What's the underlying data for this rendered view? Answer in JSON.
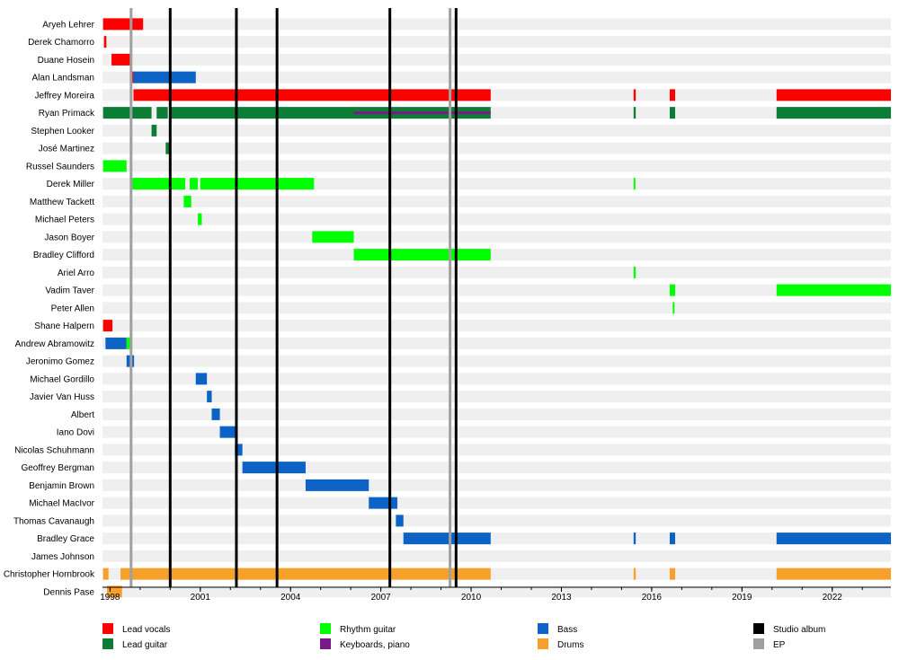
{
  "chart_data": {
    "type": "timeline",
    "x_axis": {
      "min": 1997.75,
      "max": 2023.95,
      "tick_labels": [
        "1998",
        "2001",
        "2004",
        "2007",
        "2010",
        "2013",
        "2016",
        "2019",
        "2022"
      ],
      "tick_values": [
        1998,
        2001,
        2004,
        2007,
        2010,
        2013,
        2016,
        2019,
        2022
      ]
    },
    "colors": {
      "Lead vocals": "#ff0000",
      "Lead guitar": "#0c7d34",
      "Rhythm guitar": "#00ff00",
      "Keyboards, piano": "#7a1a8a",
      "Bass": "#0c62c5",
      "Drums": "#f7a12c",
      "Studio album": "#000000",
      "EP": "#a0a0a0"
    },
    "legend": [
      {
        "label": "Lead vocals",
        "key": "Lead vocals"
      },
      {
        "label": "Lead guitar",
        "key": "Lead guitar"
      },
      {
        "label": "Rhythm guitar",
        "key": "Rhythm guitar"
      },
      {
        "label": "Keyboards, piano",
        "key": "Keyboards, piano"
      },
      {
        "label": "Bass",
        "key": "Bass"
      },
      {
        "label": "Drums",
        "key": "Drums"
      },
      {
        "label": "Studio album",
        "key": "Studio album"
      },
      {
        "label": "EP",
        "key": "EP"
      }
    ],
    "studio_albums": [
      2000.0,
      2002.2,
      2003.55,
      2007.3,
      2009.5
    ],
    "eps": [
      1998.7,
      2009.3
    ],
    "members": [
      {
        "name": "Aryeh Lehrer",
        "spans": [
          {
            "role": "Lead vocals",
            "start": 1997.77,
            "end": 1999.1
          }
        ]
      },
      {
        "name": "Derek Chamorro",
        "spans": [
          {
            "role": "Lead vocals",
            "start": 1997.8,
            "end": 1997.88
          }
        ]
      },
      {
        "name": "Duane Hosein",
        "spans": [
          {
            "role": "Lead vocals",
            "start": 1998.05,
            "end": 1998.7
          }
        ]
      },
      {
        "name": "Alan Landsman",
        "spans": [
          {
            "role": "Lead vocals",
            "start": 1998.7,
            "end": 1998.78
          },
          {
            "role": "Bass",
            "start": 1998.78,
            "end": 2000.85
          }
        ]
      },
      {
        "name": "Jeffrey Moreira",
        "spans": [
          {
            "role": "Lead vocals",
            "start": 1998.78,
            "end": 2010.65
          },
          {
            "role": "Lead vocals",
            "start": 2015.4,
            "end": 2015.47
          },
          {
            "role": "Lead vocals",
            "start": 2016.6,
            "end": 2016.78
          },
          {
            "role": "Lead vocals",
            "start": 2020.15,
            "end": 2023.95
          }
        ]
      },
      {
        "name": "Ryan Primack",
        "spans": [
          {
            "role": "Lead guitar",
            "start": 1997.77,
            "end": 1999.38
          },
          {
            "role": "Lead guitar",
            "start": 1999.55,
            "end": 1999.92
          },
          {
            "role": "Lead guitar",
            "start": 2000.0,
            "end": 2010.65
          },
          {
            "role": "Keyboards, piano",
            "start": 2006.1,
            "end": 2010.65
          },
          {
            "role": "Lead guitar",
            "start": 2015.4,
            "end": 2015.47
          },
          {
            "role": "Lead guitar",
            "start": 2016.6,
            "end": 2016.78
          },
          {
            "role": "Lead guitar",
            "start": 2020.15,
            "end": 2023.95
          }
        ]
      },
      {
        "name": "Stephen Looker",
        "spans": [
          {
            "role": "Lead guitar",
            "start": 1999.38,
            "end": 1999.55
          }
        ]
      },
      {
        "name": "José Martinez",
        "spans": [
          {
            "role": "Lead guitar",
            "start": 1999.85,
            "end": 2000.0
          }
        ]
      },
      {
        "name": "Russel Saunders",
        "spans": [
          {
            "role": "Rhythm guitar",
            "start": 1997.77,
            "end": 1998.55
          }
        ]
      },
      {
        "name": "Derek Miller",
        "spans": [
          {
            "role": "Rhythm guitar",
            "start": 1998.7,
            "end": 2000.5
          },
          {
            "role": "Rhythm guitar",
            "start": 2000.65,
            "end": 2000.92
          },
          {
            "role": "Rhythm guitar",
            "start": 2001.0,
            "end": 2004.78
          },
          {
            "role": "Rhythm guitar",
            "start": 2015.4,
            "end": 2015.45
          }
        ]
      },
      {
        "name": "Matthew Tackett",
        "spans": [
          {
            "role": "Rhythm guitar",
            "start": 2000.45,
            "end": 2000.7
          }
        ]
      },
      {
        "name": "Michael Peters",
        "spans": [
          {
            "role": "Rhythm guitar",
            "start": 2000.92,
            "end": 2001.05
          }
        ]
      },
      {
        "name": "Jason Boyer",
        "spans": [
          {
            "role": "Rhythm guitar",
            "start": 2004.72,
            "end": 2006.1
          }
        ]
      },
      {
        "name": "Bradley Clifford",
        "spans": [
          {
            "role": "Rhythm guitar",
            "start": 2006.1,
            "end": 2010.65
          }
        ]
      },
      {
        "name": "Ariel Arro",
        "spans": [
          {
            "role": "Rhythm guitar",
            "start": 2015.4,
            "end": 2015.47
          }
        ]
      },
      {
        "name": "Vadim Taver",
        "spans": [
          {
            "role": "Rhythm guitar",
            "start": 2016.6,
            "end": 2016.78
          },
          {
            "role": "Rhythm guitar",
            "start": 2020.15,
            "end": 2023.95
          }
        ]
      },
      {
        "name": "Peter Allen",
        "spans": [
          {
            "role": "Rhythm guitar",
            "start": 2016.7,
            "end": 2016.75
          }
        ]
      },
      {
        "name": "Shane Halpern",
        "spans": [
          {
            "role": "Lead vocals",
            "start": 1997.77,
            "end": 1998.08
          }
        ]
      },
      {
        "name": "Andrew Abramowitz",
        "spans": [
          {
            "role": "Bass",
            "start": 1997.85,
            "end": 1998.55
          },
          {
            "role": "Rhythm guitar",
            "start": 1998.55,
            "end": 1998.7
          }
        ]
      },
      {
        "name": "Jeronimo Gomez",
        "spans": [
          {
            "role": "Bass",
            "start": 1998.55,
            "end": 1998.8
          }
        ]
      },
      {
        "name": "Michael Gordillo",
        "spans": [
          {
            "role": "Bass",
            "start": 2000.85,
            "end": 2001.22
          }
        ]
      },
      {
        "name": "Javier Van Huss",
        "spans": [
          {
            "role": "Bass",
            "start": 2001.22,
            "end": 2001.38
          }
        ]
      },
      {
        "name": "Albert",
        "spans": [
          {
            "role": "Bass",
            "start": 2001.38,
            "end": 2001.65
          }
        ]
      },
      {
        "name": "Iano Dovi",
        "spans": [
          {
            "role": "Bass",
            "start": 2001.65,
            "end": 2002.2
          }
        ]
      },
      {
        "name": "Nicolas Schuhmann",
        "spans": [
          {
            "role": "Bass",
            "start": 2002.15,
            "end": 2002.4
          }
        ]
      },
      {
        "name": "Geoffrey Bergman",
        "spans": [
          {
            "role": "Bass",
            "start": 2002.4,
            "end": 2004.5
          }
        ]
      },
      {
        "name": "Benjamin Brown",
        "spans": [
          {
            "role": "Bass",
            "start": 2004.5,
            "end": 2006.6
          }
        ]
      },
      {
        "name": "Michael MacIvor",
        "spans": [
          {
            "role": "Bass",
            "start": 2006.6,
            "end": 2007.55
          }
        ]
      },
      {
        "name": "Thomas Cavanaugh",
        "spans": [
          {
            "role": "Bass",
            "start": 2007.5,
            "end": 2007.75
          }
        ]
      },
      {
        "name": "Bradley Grace",
        "spans": [
          {
            "role": "Bass",
            "start": 2007.75,
            "end": 2010.65
          },
          {
            "role": "Bass",
            "start": 2015.4,
            "end": 2015.47
          },
          {
            "role": "Bass",
            "start": 2016.6,
            "end": 2016.78
          },
          {
            "role": "Bass",
            "start": 2020.15,
            "end": 2023.95
          }
        ]
      },
      {
        "name": "James Johnson",
        "spans": []
      },
      {
        "name": "Christopher Hornbrook",
        "spans": [
          {
            "role": "Drums",
            "start": 1997.77,
            "end": 1997.95
          },
          {
            "role": "Drums",
            "start": 1998.35,
            "end": 2010.65
          },
          {
            "role": "Drums",
            "start": 2015.4,
            "end": 2015.47
          },
          {
            "role": "Drums",
            "start": 2016.6,
            "end": 2016.78
          },
          {
            "role": "Drums",
            "start": 2020.15,
            "end": 2023.95
          }
        ]
      },
      {
        "name": "Dennis Pase",
        "spans": [
          {
            "role": "Drums",
            "start": 1997.9,
            "end": 1998.4
          }
        ]
      }
    ]
  }
}
